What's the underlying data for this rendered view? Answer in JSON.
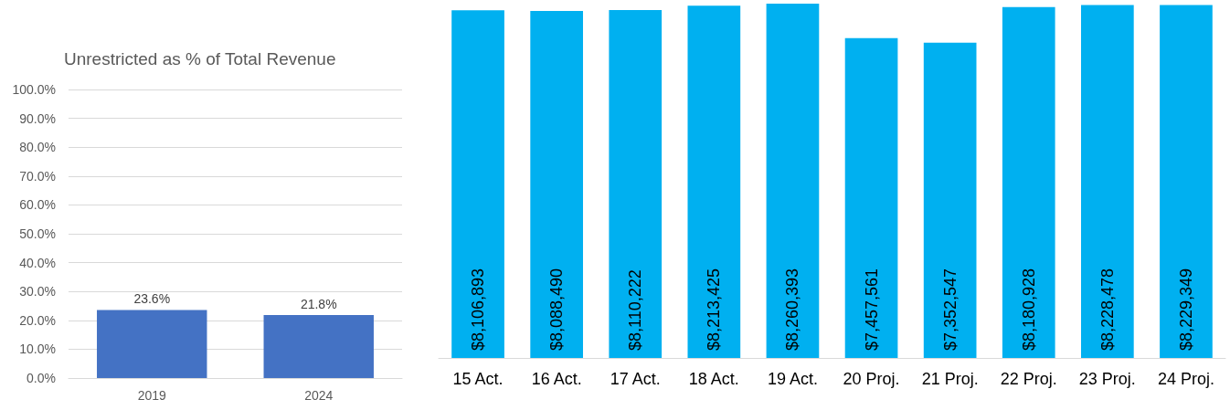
{
  "chart_data": [
    {
      "type": "bar",
      "title": "Unrestricted as % of Total Revenue",
      "categories": [
        "2019",
        "2024"
      ],
      "values": [
        23.6,
        21.8
      ],
      "value_labels": [
        "23.6%",
        "21.8%"
      ],
      "color": "#4472c4",
      "ylim": [
        0,
        100
      ],
      "yticks": [
        {
          "value": 0,
          "label": "0.0%"
        },
        {
          "value": 10,
          "label": "10.0%"
        },
        {
          "value": 20,
          "label": "20.0%"
        },
        {
          "value": 30,
          "label": "30.0%"
        },
        {
          "value": 40,
          "label": "40.0%"
        },
        {
          "value": 50,
          "label": "50.0%"
        },
        {
          "value": 60,
          "label": "60.0%"
        },
        {
          "value": 70,
          "label": "70.0%"
        },
        {
          "value": 80,
          "label": "80.0%"
        },
        {
          "value": 90,
          "label": "90.0%"
        },
        {
          "value": 100,
          "label": "100.0%"
        }
      ],
      "grid": "y"
    },
    {
      "type": "bar",
      "categories": [
        "15 Act.",
        "16 Act.",
        "17 Act.",
        "18 Act.",
        "19 Act.",
        "20 Proj.",
        "21 Proj.",
        "22 Proj.",
        "23 Proj.",
        "24 Proj."
      ],
      "values": [
        8106893,
        8088490,
        8110222,
        8213425,
        8260393,
        7457561,
        7352547,
        8180928,
        8228478,
        8229349
      ],
      "value_labels": [
        "$8,106,893",
        "$8,088,490",
        "$8,110,222",
        "$8,213,425",
        "$8,260,393",
        "$7,457,561",
        "$7,352,547",
        "$8,180,928",
        "$8,228,478",
        "$8,229,349"
      ],
      "color": "#00b0f0",
      "tick_labels": "x"
    }
  ]
}
